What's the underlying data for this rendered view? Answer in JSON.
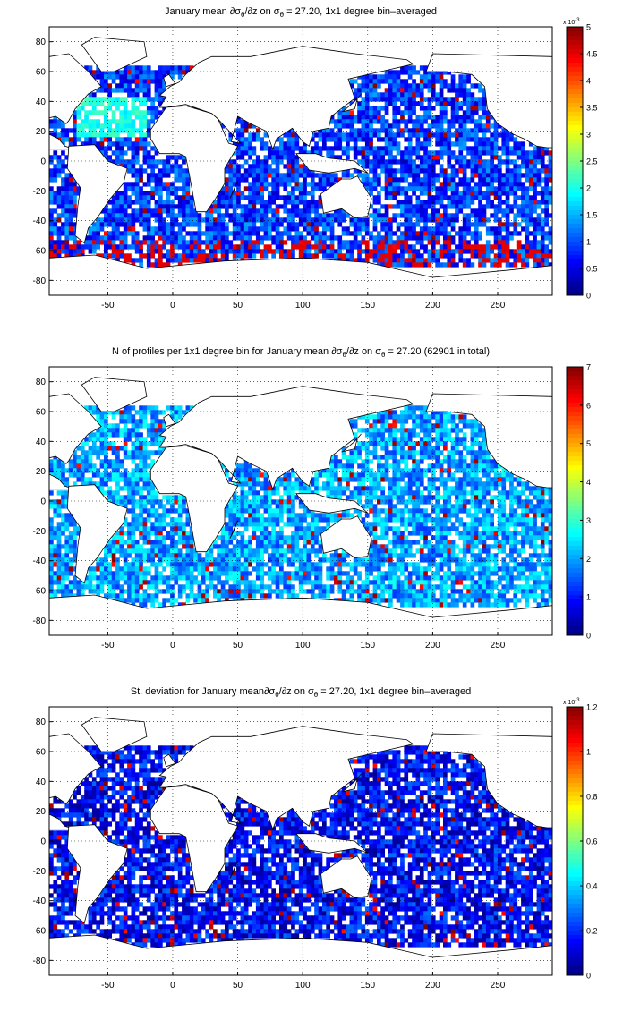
{
  "chart_data": [
    {
      "type": "heatmap",
      "title_parts": {
        "pre": "January mean ∂σ",
        "sub1": "θ",
        "mid": "/∂z on σ",
        "sub2": "θ",
        "post": " = 27.20, 1x1 degree bin–averaged"
      },
      "x_ticks": [
        "-50",
        "0",
        "50",
        "100",
        "150",
        "200",
        "250"
      ],
      "y_ticks": [
        "80",
        "60",
        "40",
        "20",
        "0",
        "-20",
        "-40",
        "-60",
        "-80"
      ],
      "xlim": [
        -95,
        292
      ],
      "ylim": [
        -90,
        90
      ],
      "grid": "dotted",
      "colorbar": {
        "ticks": [
          "5",
          "4.5",
          "4",
          "3.5",
          "3",
          "2.5",
          "2",
          "1.5",
          "1",
          "0.5",
          "0"
        ],
        "range": [
          0,
          5
        ],
        "exponent_label": "x 10",
        "exponent_value": "-3",
        "colormap": "jet"
      },
      "dominant_level": 0.9
    },
    {
      "type": "heatmap",
      "title_parts": {
        "pre": "N of profiles per 1x1 degree bin for January mean ∂σ",
        "sub1": "θ",
        "mid": "/∂z on σ",
        "sub2": "θ",
        "post": " = 27.20 (62901 in total)"
      },
      "x_ticks": [
        "-50",
        "0",
        "50",
        "100",
        "150",
        "200",
        "250"
      ],
      "y_ticks": [
        "80",
        "60",
        "40",
        "20",
        "0",
        "-20",
        "-40",
        "-60",
        "-80"
      ],
      "xlim": [
        -95,
        292
      ],
      "ylim": [
        -90,
        90
      ],
      "grid": "dotted",
      "colorbar": {
        "ticks": [
          "7",
          "6",
          "5",
          "4",
          "3",
          "2",
          "1",
          "0"
        ],
        "range": [
          0,
          7
        ],
        "exponent_label": "",
        "exponent_value": "",
        "colormap": "jet"
      },
      "dominant_level": 2
    },
    {
      "type": "heatmap",
      "title_parts": {
        "pre": "St. deviation for January mean∂σ",
        "sub1": "θ",
        "mid": "/∂z on σ",
        "sub2": "θ",
        "post": " = 27.20, 1x1 degree bin–averaged"
      },
      "x_ticks": [
        "-50",
        "0",
        "50",
        "100",
        "150",
        "200",
        "250"
      ],
      "y_ticks": [
        "80",
        "60",
        "40",
        "20",
        "0",
        "-20",
        "-40",
        "-60",
        "-80"
      ],
      "xlim": [
        -95,
        292
      ],
      "ylim": [
        -90,
        90
      ],
      "grid": "dotted",
      "colorbar": {
        "ticks": [
          "1.2",
          "1",
          "0.8",
          "0.6",
          "0.4",
          "0.2",
          "0"
        ],
        "range": [
          0,
          1.2
        ],
        "exponent_label": "x 10",
        "exponent_value": "-3",
        "colormap": "jet"
      },
      "dominant_level": 0.15
    }
  ]
}
